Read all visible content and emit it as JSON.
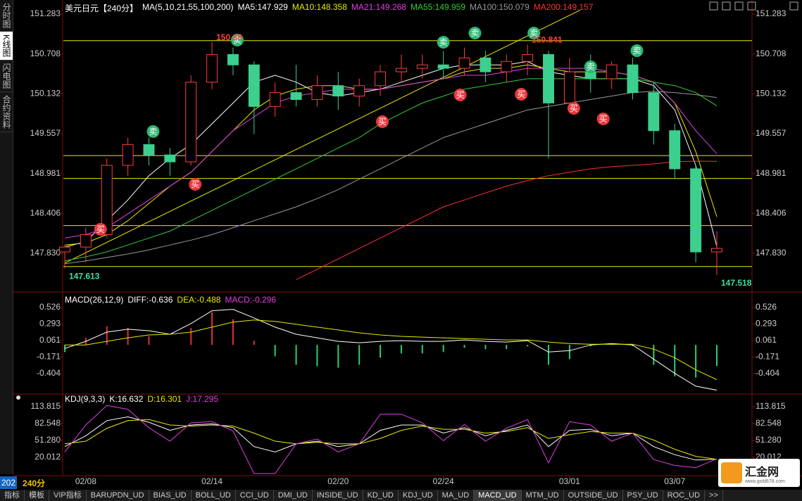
{
  "sidebar": {
    "items": [
      "分时图",
      "K线图",
      "闪电图",
      "合约资料"
    ],
    "selected": 1
  },
  "status": {
    "code": "202",
    "period": "240分"
  },
  "logo": {
    "name": "汇金网",
    "url": "www.gold678.com"
  },
  "tabs": {
    "items": [
      "指标",
      "模板",
      "VIP指标",
      "BARUPDN_UD",
      "BIAS_UD",
      "BOLL_UD",
      "CCI_UD",
      "DMI_UD",
      "INSIDE_UD",
      "KD_UD",
      "KDJ_UD",
      "MA_UD",
      "MACD_UD",
      "MTM_UD",
      "OUTSIDE_UD",
      "PSY_UD",
      "ROC_UD",
      ">>"
    ],
    "selected": 12
  },
  "chart_data": [
    {
      "type": "candlestick",
      "title": "美元日元【240分】",
      "indicator": "MA(5,10,21,55,100,200)",
      "categories": [
        null,
        "02/08",
        null,
        null,
        null,
        null,
        null,
        "02/14",
        null,
        null,
        null,
        null,
        null,
        "02/20",
        null,
        null,
        null,
        null,
        "02/24",
        null,
        null,
        null,
        null,
        null,
        "03/01",
        null,
        null,
        null,
        null,
        "03/07",
        null,
        null
      ],
      "open": [
        147.85,
        147.92,
        148.1,
        149.1,
        149.4,
        149.25,
        149.15,
        150.3,
        150.7,
        150.55,
        149.95,
        150.15,
        150.05,
        150.25,
        150.1,
        150.25,
        150.45,
        150.5,
        150.55,
        150.5,
        150.65,
        150.45,
        150.6,
        150.7,
        150.0,
        150.45,
        150.35,
        150.55,
        150.15,
        149.6,
        149.05,
        147.85
      ],
      "high": [
        147.95,
        148.2,
        149.2,
        149.5,
        149.5,
        149.35,
        150.4,
        150.88,
        150.8,
        150.6,
        150.3,
        150.55,
        150.4,
        150.45,
        150.35,
        150.55,
        150.7,
        150.7,
        150.75,
        150.8,
        150.75,
        150.7,
        150.841,
        150.75,
        150.65,
        150.7,
        150.6,
        150.65,
        150.3,
        149.7,
        149.1,
        148.15
      ],
      "low": [
        147.613,
        147.7,
        148.05,
        148.95,
        149.1,
        148.95,
        149.1,
        150.2,
        150.4,
        149.55,
        149.8,
        149.95,
        149.95,
        149.9,
        149.95,
        150.1,
        150.3,
        150.35,
        150.35,
        150.4,
        150.3,
        150.3,
        150.4,
        149.2,
        149.95,
        150.15,
        150.2,
        150.05,
        149.4,
        148.9,
        147.7,
        147.518
      ],
      "close": [
        147.92,
        148.1,
        149.1,
        149.4,
        149.25,
        149.15,
        150.3,
        150.7,
        150.55,
        149.95,
        150.15,
        150.05,
        150.25,
        150.1,
        150.25,
        150.45,
        150.5,
        150.55,
        150.5,
        150.65,
        150.45,
        150.6,
        150.7,
        150.0,
        150.45,
        150.35,
        150.55,
        150.15,
        149.6,
        149.05,
        147.85,
        147.9
      ],
      "up_color": "#ff3b3b",
      "down_color": "#3ccf8e",
      "ylim": [
        147.322,
        151.385
      ],
      "yticks": [
        151.283,
        150.708,
        150.132,
        149.557,
        148.981,
        148.406,
        {
          "value": 147.83,
          "label": "147.830"
        }
      ],
      "ma": [
        {
          "label": "MA5:147.929",
          "color": "#ffffff",
          "values": [
            147.92,
            148.0,
            148.3,
            148.6,
            148.95,
            149.2,
            149.4,
            149.7,
            150.0,
            150.3,
            150.4,
            150.3,
            150.15,
            150.1,
            150.15,
            150.2,
            150.3,
            150.4,
            150.5,
            150.55,
            150.55,
            150.55,
            150.6,
            150.45,
            150.4,
            150.35,
            150.35,
            150.35,
            150.25,
            149.9,
            149.1,
            147.929
          ]
        },
        {
          "label": "MA10:148.358",
          "color": "#e8e800",
          "values": [
            147.95,
            147.98,
            148.1,
            148.3,
            148.55,
            148.8,
            149.0,
            149.3,
            149.6,
            149.9,
            150.1,
            150.2,
            150.25,
            150.25,
            150.2,
            150.2,
            150.25,
            150.3,
            150.35,
            150.45,
            150.5,
            150.5,
            150.55,
            150.5,
            150.45,
            150.45,
            150.45,
            150.4,
            150.3,
            150.0,
            149.3,
            148.358
          ]
        },
        {
          "label": "MA21:149.268",
          "color": "#e040e0",
          "values": [
            148.05,
            148.1,
            148.2,
            148.4,
            148.6,
            148.8,
            149.0,
            149.3,
            149.6,
            149.8,
            150.0,
            150.1,
            150.15,
            150.2,
            150.2,
            150.2,
            150.25,
            150.3,
            150.35,
            150.4,
            150.4,
            150.45,
            150.5,
            150.5,
            150.5,
            150.5,
            150.45,
            150.4,
            150.3,
            150.0,
            149.6,
            149.268
          ]
        },
        {
          "label": "MA55:149.959",
          "color": "#33cc33",
          "values": [
            147.72,
            147.78,
            147.85,
            147.95,
            148.05,
            148.15,
            148.3,
            148.45,
            148.6,
            148.75,
            148.9,
            149.05,
            149.2,
            149.35,
            149.5,
            149.7,
            149.85,
            150.0,
            150.1,
            150.2,
            150.25,
            150.3,
            150.35,
            150.35,
            150.35,
            150.35,
            150.35,
            150.35,
            150.3,
            150.25,
            150.15,
            149.959
          ]
        },
        {
          "label": "MA100:150.079",
          "color": "#999999",
          "values": [
            147.68,
            147.72,
            147.77,
            147.82,
            147.88,
            147.95,
            148.02,
            148.1,
            148.2,
            148.3,
            148.4,
            148.5,
            148.62,
            148.75,
            148.9,
            149.05,
            149.2,
            149.35,
            149.5,
            149.6,
            149.7,
            149.8,
            149.9,
            149.95,
            150.0,
            150.05,
            150.1,
            150.15,
            150.17,
            150.15,
            150.12,
            150.079
          ]
        },
        {
          "label": "MA200:149.157",
          "color": "#ff3030",
          "values": [
            null,
            null,
            null,
            null,
            null,
            null,
            null,
            null,
            null,
            null,
            null,
            147.45,
            147.6,
            147.75,
            147.9,
            148.05,
            148.2,
            148.35,
            148.5,
            148.6,
            148.7,
            148.8,
            148.88,
            148.95,
            149.0,
            149.05,
            149.08,
            149.1,
            149.12,
            149.15,
            149.16,
            149.157
          ]
        }
      ],
      "hlines": [
        150.9,
        149.24,
        148.91,
        148.23,
        147.64
      ],
      "hline_color": "#e8e800",
      "trendline": {
        "x": [
          0,
          24.5
        ],
        "values": [
          147.69,
          151.34
        ],
        "color": "#e8e800"
      },
      "signals": [
        {
          "label": "卖",
          "x": 4.2,
          "value": 149.588,
          "color": "#2bb673"
        },
        {
          "label": "卖",
          "x": 8.2,
          "value": 150.908,
          "color": "#2bb673"
        },
        {
          "label": "卖",
          "x": 18,
          "value": 150.877,
          "color": "#2bb673"
        },
        {
          "label": "卖",
          "x": 19.5,
          "value": 151.009,
          "color": "#2bb673"
        },
        {
          "label": "卖",
          "x": 22.3,
          "value": 151.009,
          "color": "#2bb673"
        },
        {
          "label": "卖",
          "x": 25,
          "value": 150.522,
          "color": "#2bb673"
        },
        {
          "label": "卖",
          "x": 27.2,
          "value": 150.755,
          "color": "#2bb673"
        },
        {
          "label": "买",
          "x": 1.7,
          "value": 148.176,
          "color": "#e8383d"
        },
        {
          "label": "买",
          "x": 6.2,
          "value": 148.826,
          "color": "#e8383d"
        },
        {
          "label": "买",
          "x": 15.1,
          "value": 149.73,
          "color": "#e8383d"
        },
        {
          "label": "买",
          "x": 18.8,
          "value": 150.116,
          "color": "#e8383d"
        },
        {
          "label": "买",
          "x": 21.7,
          "value": 150.126,
          "color": "#e8383d"
        },
        {
          "label": "买",
          "x": 24.2,
          "value": 149.923,
          "color": "#e8383d"
        },
        {
          "label": "买",
          "x": 25.6,
          "value": 149.77,
          "color": "#e8383d"
        }
      ],
      "price_labels": [
        {
          "x": 7,
          "value": 150.88,
          "color": "#ff4040"
        },
        {
          "x": 22,
          "value": 150.841,
          "color": "#ff4040"
        },
        {
          "x": 0,
          "value": 147.613,
          "color": "#40e0a0"
        },
        {
          "x": 31,
          "value": 147.518,
          "color": "#40e0a0"
        }
      ]
    },
    {
      "type": "macd",
      "title": "MACD(26,12,9)",
      "ylim": [
        -0.651,
        0.694
      ],
      "yticks": [
        0.526,
        0.293,
        0.061,
        -0.171,
        -0.404
      ],
      "series": [
        {
          "label": "DIFF:-0.636",
          "color": "#ffffff",
          "values": [
            -0.05,
            0.05,
            0.18,
            0.22,
            0.2,
            0.15,
            0.3,
            0.48,
            0.5,
            0.38,
            0.25,
            0.15,
            0.1,
            0.05,
            0.03,
            0.05,
            0.06,
            0.05,
            0.05,
            0.07,
            0.05,
            0.04,
            0.06,
            -0.1,
            -0.08,
            0.0,
            0.02,
            0.0,
            -0.2,
            -0.4,
            -0.58,
            -0.636
          ]
        },
        {
          "label": "DEA:-0.488",
          "color": "#e8e800",
          "values": [
            0.0,
            0.0,
            0.05,
            0.1,
            0.14,
            0.15,
            0.18,
            0.25,
            0.32,
            0.35,
            0.33,
            0.29,
            0.25,
            0.21,
            0.17,
            0.14,
            0.12,
            0.11,
            0.1,
            0.09,
            0.08,
            0.07,
            0.07,
            0.04,
            0.02,
            0.01,
            0.01,
            0.01,
            -0.06,
            -0.18,
            -0.35,
            -0.488
          ]
        }
      ],
      "bars": {
        "label": "MACD:-0.296",
        "color": "#e040e0",
        "up_color": "#e03030",
        "down_color": "#2ecc71",
        "values": [
          -0.1,
          0.1,
          0.26,
          0.24,
          0.12,
          0.0,
          0.24,
          0.46,
          0.36,
          0.06,
          -0.16,
          -0.28,
          -0.3,
          -0.32,
          -0.28,
          -0.18,
          -0.12,
          -0.12,
          -0.1,
          -0.04,
          -0.06,
          -0.06,
          -0.02,
          -0.28,
          -0.2,
          -0.02,
          0.02,
          -0.02,
          -0.28,
          -0.44,
          -0.46,
          -0.296
        ]
      }
    },
    {
      "type": "line",
      "title": "KDJ(9,3,3)",
      "ylim": [
        -12.56,
        130.75
      ],
      "yticks": [
        113.815,
        82.548,
        {
          "value": 51.28,
          "label": "51.280"
        },
        20.012
      ],
      "series": [
        {
          "label": "K:16.632",
          "color": "#ffffff",
          "values": [
            40,
            60,
            88,
            95,
            85,
            70,
            80,
            82,
            75,
            40,
            30,
            45,
            50,
            40,
            45,
            70,
            80,
            80,
            65,
            75,
            60,
            70,
            80,
            40,
            70,
            72,
            60,
            65,
            40,
            25,
            15,
            16.632
          ]
        },
        {
          "label": "D:16.301",
          "color": "#e8e800",
          "values": [
            45,
            50,
            74,
            88,
            90,
            80,
            78,
            80,
            78,
            65,
            50,
            45,
            48,
            45,
            45,
            55,
            70,
            78,
            72,
            72,
            65,
            68,
            75,
            55,
            62,
            68,
            65,
            65,
            52,
            35,
            22,
            16.301
          ]
        },
        {
          "label": "J:17.295",
          "color": "#e040e0",
          "values": [
            30,
            80,
            116,
            109,
            75,
            50,
            84,
            86,
            69,
            -10,
            -10,
            45,
            54,
            30,
            45,
            100,
            100,
            84,
            51,
            81,
            50,
            74,
            90,
            10,
            86,
            80,
            50,
            65,
            16,
            5,
            1,
            17.295
          ]
        }
      ]
    }
  ]
}
